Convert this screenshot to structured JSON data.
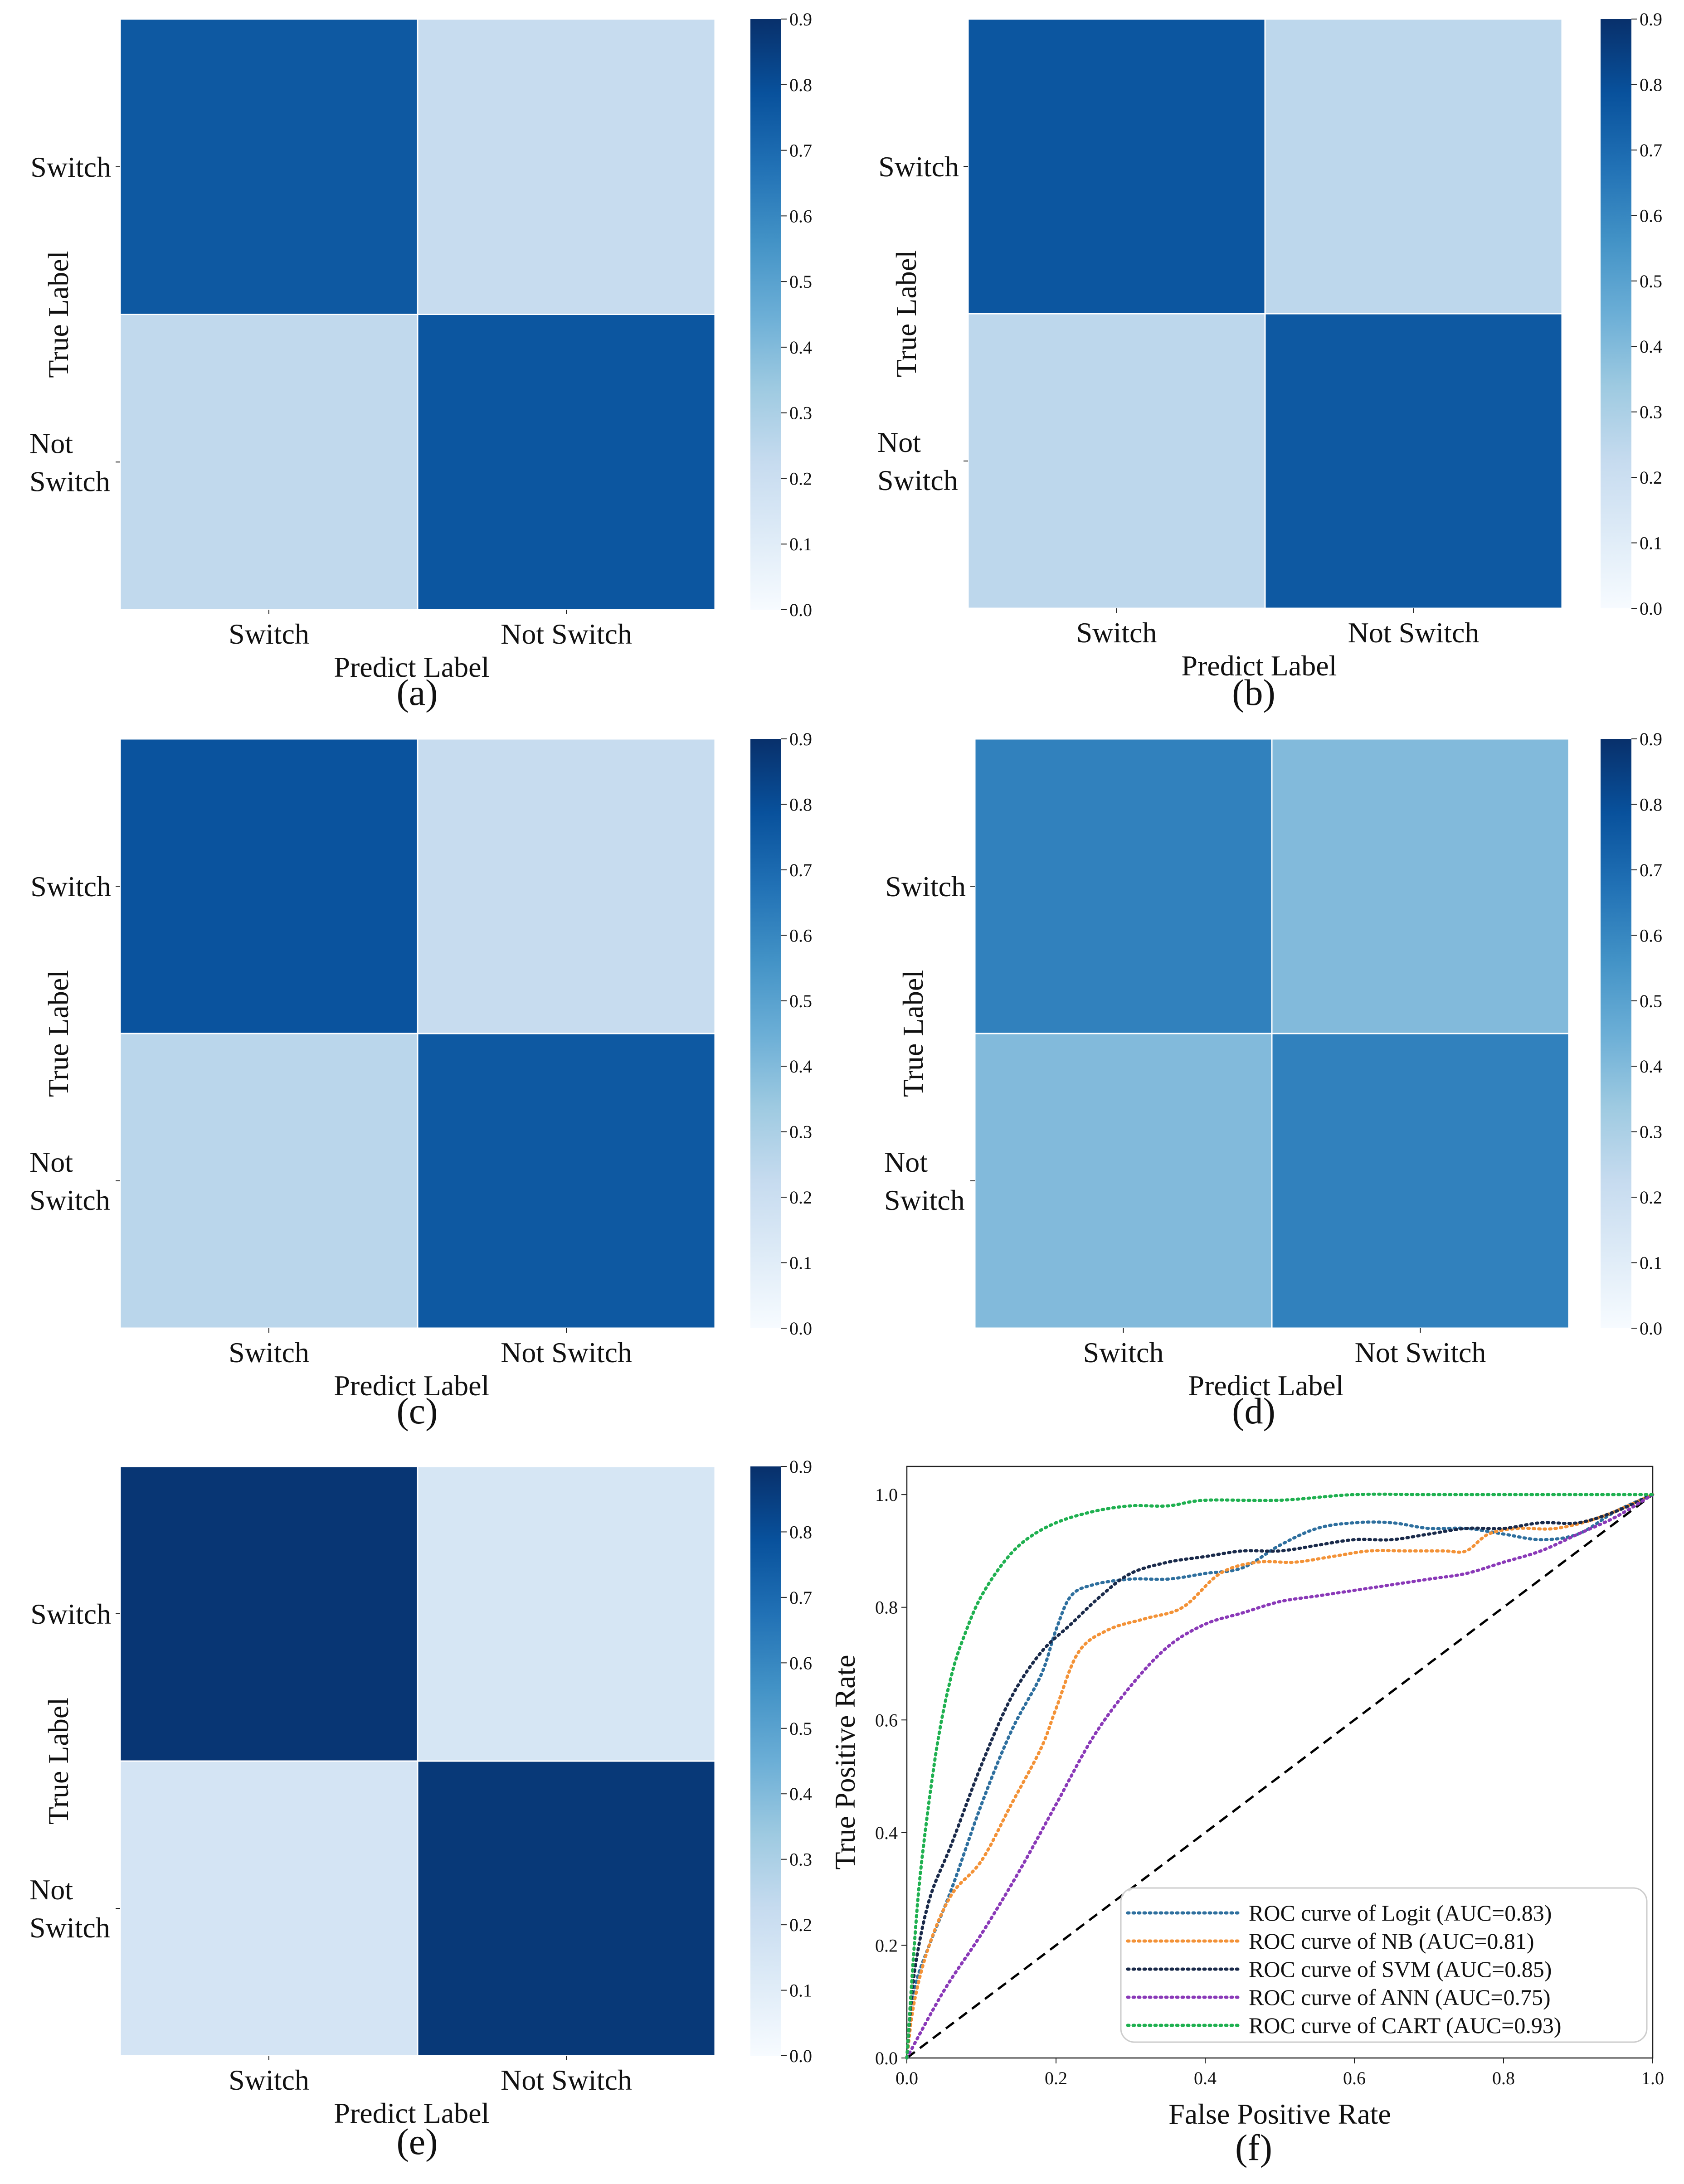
{
  "colors": {
    "cmap": [
      "#f7fbff",
      "#deebf7",
      "#c6dbef",
      "#9ecae1",
      "#6baed6",
      "#4292c6",
      "#2171b5",
      "#08519c",
      "#08306b"
    ],
    "cell_border": "#ffffff",
    "diagonal": "#000000"
  },
  "chart_data": [
    {
      "type": "heatmap",
      "panel_label": "(a)",
      "xlabel": "Predict Label",
      "ylabel": "True Label",
      "x_categories": [
        "Switch",
        "Not Switch"
      ],
      "y_categories": [
        "Switch",
        "Not\nSwitch"
      ],
      "matrix": [
        [
          0.76,
          0.22
        ],
        [
          0.24,
          0.77
        ]
      ],
      "colorbar": {
        "vmin": 0.0,
        "vmax": 0.9,
        "ticks": [
          "0.0",
          "0.1",
          "0.2",
          "0.3",
          "0.4",
          "0.5",
          "0.6",
          "0.7",
          "0.8",
          "0.9"
        ]
      }
    },
    {
      "type": "heatmap",
      "panel_label": "(b)",
      "xlabel": "Predict Label",
      "ylabel": "True Label",
      "x_categories": [
        "Switch",
        "Not Switch"
      ],
      "y_categories": [
        "Switch",
        "Not\nSwitch"
      ],
      "matrix": [
        [
          0.77,
          0.25
        ],
        [
          0.25,
          0.76
        ]
      ],
      "colorbar": {
        "vmin": 0.0,
        "vmax": 0.9,
        "ticks": [
          "0.0",
          "0.1",
          "0.2",
          "0.3",
          "0.4",
          "0.5",
          "0.6",
          "0.7",
          "0.8",
          "0.9"
        ]
      }
    },
    {
      "type": "heatmap",
      "panel_label": "(c)",
      "xlabel": "Predict Label",
      "ylabel": "True Label",
      "x_categories": [
        "Switch",
        "Not Switch"
      ],
      "y_categories": [
        "Switch",
        "Not\nSwitch"
      ],
      "matrix": [
        [
          0.78,
          0.22
        ],
        [
          0.26,
          0.76
        ]
      ],
      "colorbar": {
        "vmin": 0.0,
        "vmax": 0.9,
        "ticks": [
          "0.0",
          "0.1",
          "0.2",
          "0.3",
          "0.4",
          "0.5",
          "0.6",
          "0.7",
          "0.8",
          "0.9"
        ]
      }
    },
    {
      "type": "heatmap",
      "panel_label": "(d)",
      "xlabel": "Predict Label",
      "ylabel": "True Label",
      "x_categories": [
        "Switch",
        "Not Switch"
      ],
      "y_categories": [
        "Switch",
        "Not\nSwitch"
      ],
      "matrix": [
        [
          0.62,
          0.4
        ],
        [
          0.4,
          0.62
        ]
      ],
      "colorbar": {
        "vmin": 0.0,
        "vmax": 0.9,
        "ticks": [
          "0.0",
          "0.1",
          "0.2",
          "0.3",
          "0.4",
          "0.5",
          "0.6",
          "0.7",
          "0.8",
          "0.9"
        ]
      }
    },
    {
      "type": "heatmap",
      "panel_label": "(e)",
      "xlabel": "Predict Label",
      "ylabel": "True Label",
      "x_categories": [
        "Switch",
        "Not Switch"
      ],
      "y_categories": [
        "Switch",
        "Not\nSwitch"
      ],
      "matrix": [
        [
          0.88,
          0.15
        ],
        [
          0.16,
          0.87
        ]
      ],
      "colorbar": {
        "vmin": 0.0,
        "vmax": 0.9,
        "ticks": [
          "0.0",
          "0.1",
          "0.2",
          "0.3",
          "0.4",
          "0.5",
          "0.6",
          "0.7",
          "0.8",
          "0.9"
        ]
      }
    },
    {
      "type": "line",
      "panel_label": "(f)",
      "xlabel": "False Positive Rate",
      "ylabel": "True Positive Rate",
      "xlim": [
        0.0,
        1.0
      ],
      "ylim": [
        0.0,
        1.05
      ],
      "xticks": [
        "0.0",
        "0.2",
        "0.4",
        "0.6",
        "0.8",
        "1.0"
      ],
      "yticks": [
        "0.0",
        "0.2",
        "0.4",
        "0.6",
        "0.8",
        "1.0"
      ],
      "legend_position": "lower-right",
      "diagonal": {
        "x": [
          0.0,
          1.0
        ],
        "y": [
          0.0,
          1.0
        ],
        "style": "dashed"
      },
      "series": [
        {
          "name": "ROC curve of Logit (AUC=0.83)",
          "color": "#2e6f9e",
          "x": [
            0,
            0.01,
            0.03,
            0.06,
            0.1,
            0.14,
            0.18,
            0.2,
            0.22,
            0.25,
            0.3,
            0.35,
            0.4,
            0.45,
            0.5,
            0.55,
            0.6,
            0.65,
            0.7,
            0.75,
            0.8,
            0.85,
            0.9,
            0.95,
            1.0
          ],
          "y": [
            0,
            0.12,
            0.2,
            0.3,
            0.45,
            0.58,
            0.68,
            0.76,
            0.82,
            0.84,
            0.85,
            0.85,
            0.86,
            0.87,
            0.91,
            0.94,
            0.95,
            0.95,
            0.94,
            0.94,
            0.93,
            0.92,
            0.93,
            0.97,
            1.0
          ]
        },
        {
          "name": "ROC curve of NB (AUC=0.81)",
          "color": "#f39237",
          "x": [
            0,
            0.01,
            0.03,
            0.06,
            0.1,
            0.14,
            0.18,
            0.2,
            0.23,
            0.27,
            0.32,
            0.37,
            0.42,
            0.47,
            0.52,
            0.57,
            0.62,
            0.67,
            0.72,
            0.75,
            0.78,
            0.82,
            0.87,
            0.93,
            1.0
          ],
          "y": [
            0,
            0.1,
            0.2,
            0.29,
            0.35,
            0.45,
            0.55,
            0.62,
            0.72,
            0.76,
            0.78,
            0.8,
            0.86,
            0.88,
            0.88,
            0.89,
            0.9,
            0.9,
            0.9,
            0.9,
            0.93,
            0.94,
            0.94,
            0.96,
            1.0
          ]
        },
        {
          "name": "ROC curve of SVM (AUC=0.85)",
          "color": "#1a2a4a",
          "x": [
            0,
            0.01,
            0.03,
            0.06,
            0.1,
            0.14,
            0.18,
            0.22,
            0.26,
            0.3,
            0.35,
            0.4,
            0.45,
            0.5,
            0.55,
            0.6,
            0.65,
            0.7,
            0.75,
            0.8,
            0.85,
            0.9,
            0.95,
            1.0
          ],
          "y": [
            0,
            0.15,
            0.28,
            0.38,
            0.52,
            0.64,
            0.72,
            0.77,
            0.82,
            0.86,
            0.88,
            0.89,
            0.9,
            0.9,
            0.91,
            0.92,
            0.92,
            0.93,
            0.94,
            0.94,
            0.95,
            0.95,
            0.97,
            1.0
          ]
        },
        {
          "name": "ROC curve of ANN (AUC=0.75)",
          "color": "#8a39b8",
          "x": [
            0,
            0.05,
            0.1,
            0.15,
            0.2,
            0.25,
            0.3,
            0.35,
            0.4,
            0.45,
            0.5,
            0.55,
            0.6,
            0.65,
            0.7,
            0.75,
            0.8,
            0.85,
            0.9,
            0.95,
            1.0
          ],
          "y": [
            0,
            0.12,
            0.22,
            0.33,
            0.45,
            0.57,
            0.66,
            0.73,
            0.77,
            0.79,
            0.81,
            0.82,
            0.83,
            0.84,
            0.85,
            0.86,
            0.88,
            0.9,
            0.93,
            0.96,
            1.0
          ]
        },
        {
          "name": "ROC curve of CART (AUC=0.93)",
          "color": "#1fb050",
          "x": [
            0,
            0.01,
            0.02,
            0.04,
            0.06,
            0.08,
            0.1,
            0.13,
            0.16,
            0.2,
            0.25,
            0.3,
            0.35,
            0.4,
            0.5,
            0.6,
            0.7,
            0.8,
            0.9,
            1.0
          ],
          "y": [
            0,
            0.2,
            0.35,
            0.55,
            0.68,
            0.76,
            0.82,
            0.88,
            0.92,
            0.95,
            0.97,
            0.98,
            0.98,
            0.99,
            0.99,
            1.0,
            1.0,
            1.0,
            1.0,
            1.0
          ]
        }
      ]
    }
  ]
}
